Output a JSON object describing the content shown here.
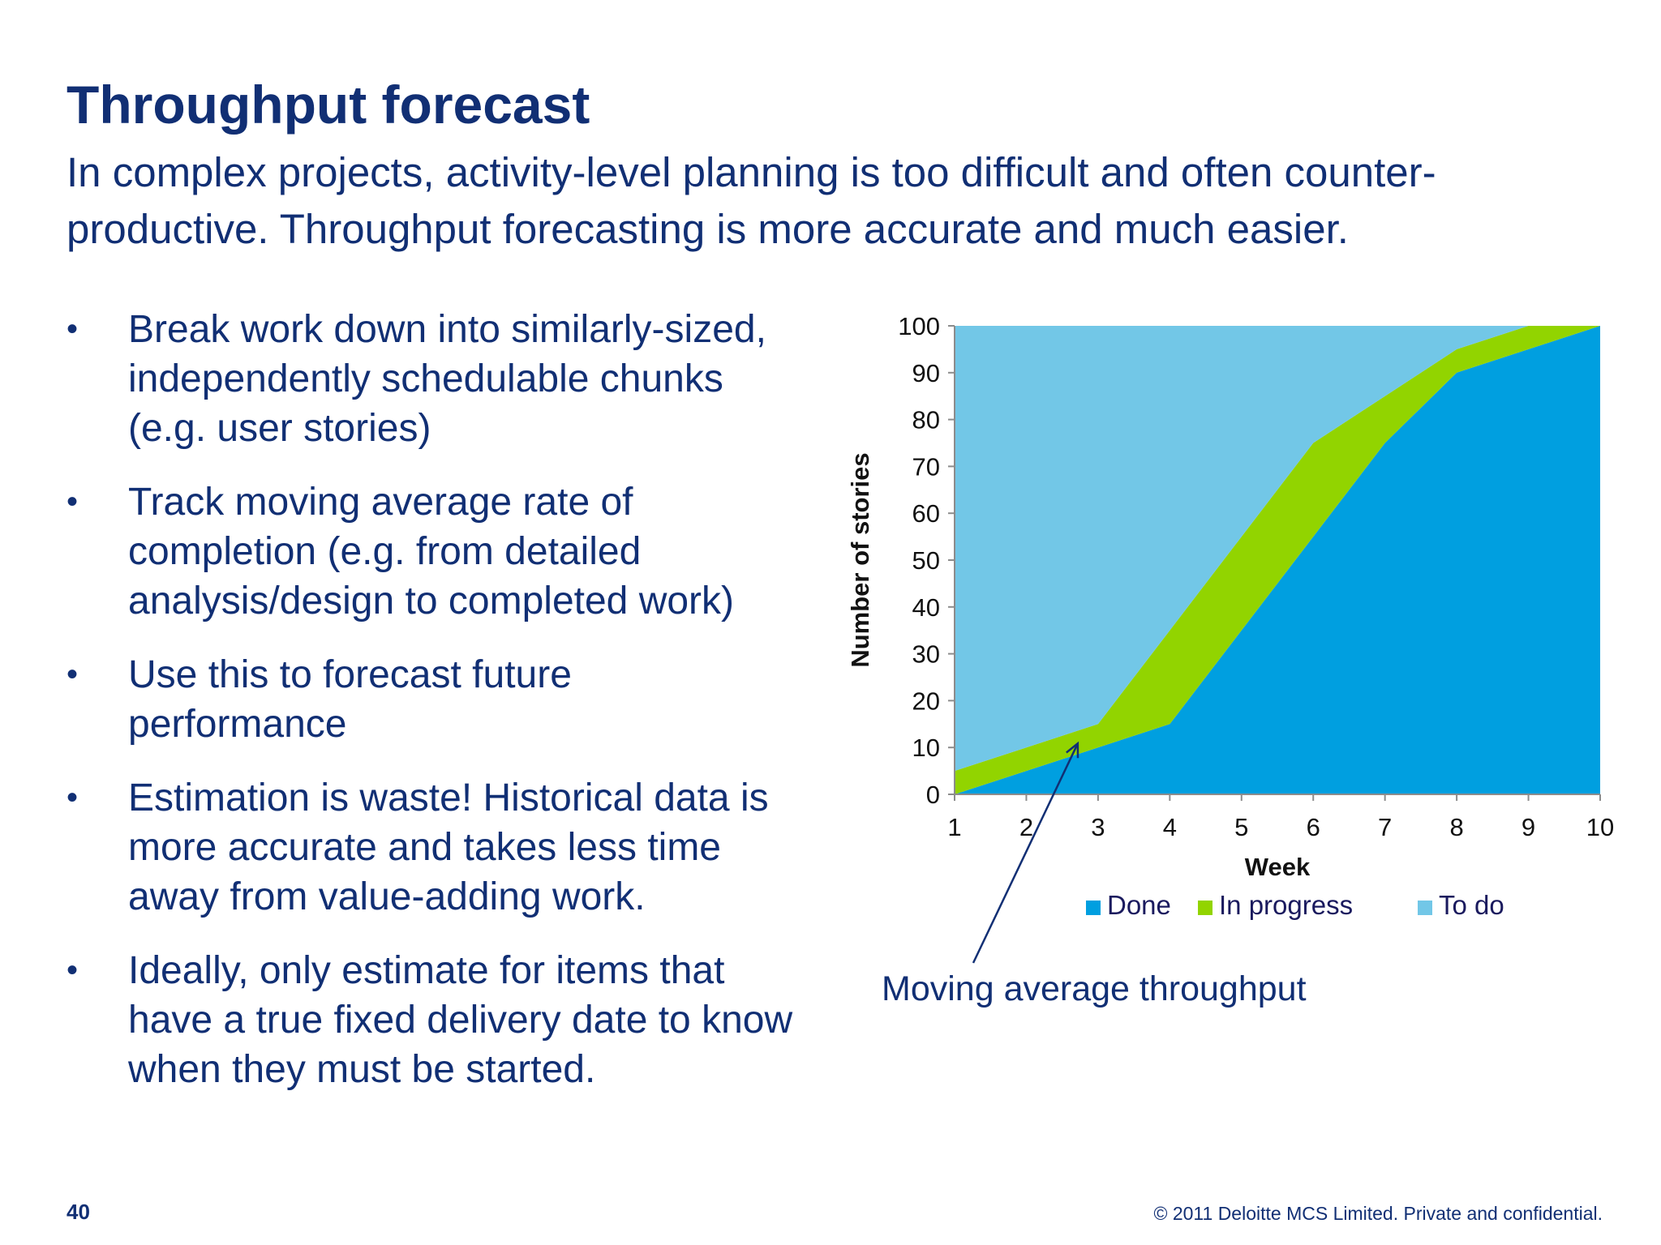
{
  "slide": {
    "title": "Throughput forecast",
    "subtitle": "In complex projects, activity-level planning is too difficult and often counter-productive. Throughput forecasting is more accurate and much easier.",
    "bullet_glyph": "•",
    "bullets": [
      "Break work down into similarly-sized, independently schedulable chunks (e.g. user stories)",
      "Track moving average rate of completion (e.g. from detailed analysis/design to completed work)",
      "Use this to forecast future performance",
      "Estimation is waste! Historical data is more accurate and takes less time away from value-adding work.",
      "Ideally, only estimate for items that have a true fixed delivery date to know when they must be started."
    ],
    "page_number": "40",
    "footer": "© 2011 Deloitte MCS Limited. Private and confidential."
  },
  "chart_data": {
    "type": "area",
    "stacked": true,
    "x": [
      1,
      2,
      3,
      4,
      5,
      6,
      7,
      8,
      9,
      10
    ],
    "xlabel": "Week",
    "ylabel": "Number of stories",
    "ylim": [
      0,
      100
    ],
    "yticks": [
      0,
      10,
      20,
      30,
      40,
      50,
      60,
      70,
      80,
      90,
      100
    ],
    "series": [
      {
        "name": "Done",
        "values": [
          0,
          5,
          10,
          15,
          35,
          55,
          75,
          90,
          95,
          100
        ],
        "color": "#009fe0"
      },
      {
        "name": "In progress",
        "values": [
          5,
          5,
          5,
          20,
          20,
          20,
          10,
          5,
          5,
          0
        ],
        "color": "#92d400"
      },
      {
        "name": "To do",
        "values": [
          95,
          90,
          85,
          65,
          45,
          25,
          15,
          5,
          0,
          0
        ],
        "color": "#72c7e7"
      }
    ],
    "legend_position": "bottom",
    "annotation": {
      "text": "Moving average throughput",
      "points_to_week": 3,
      "points_to_value": 10
    }
  }
}
